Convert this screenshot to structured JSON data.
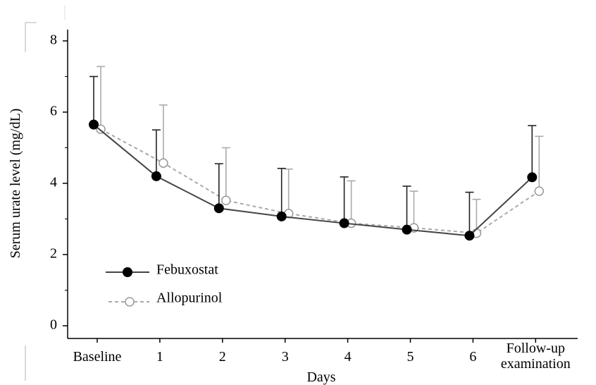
{
  "chart_data": {
    "type": "line",
    "xlabel": "Days",
    "ylabel": "Serum urate level (mg/dL)",
    "ylim": [
      0,
      8
    ],
    "yticks": [
      0,
      2,
      4,
      6,
      8
    ],
    "categories": [
      "Baseline",
      "1",
      "2",
      "3",
      "4",
      "5",
      "6",
      "Follow-up examination"
    ],
    "category_lines": [
      [
        "Baseline"
      ],
      [
        "1"
      ],
      [
        "2"
      ],
      [
        "3"
      ],
      [
        "4"
      ],
      [
        "5"
      ],
      [
        "6"
      ],
      [
        "Follow-up",
        "examination"
      ]
    ],
    "grid": false,
    "legend_position": "bottom-left",
    "series": [
      {
        "name": "Febuxostat",
        "marker": "filled-circle",
        "line_style": "solid",
        "color": "#000000",
        "line_color": "#444444",
        "values": [
          5.65,
          4.2,
          3.3,
          3.07,
          2.88,
          2.7,
          2.53,
          4.17
        ],
        "error_upper": [
          7.0,
          5.5,
          4.55,
          4.42,
          4.18,
          3.92,
          3.75,
          5.62
        ]
      },
      {
        "name": "Allopurinol",
        "marker": "open-circle",
        "line_style": "dashed",
        "color": "#999999",
        "line_color": "#aaaaaa",
        "values": [
          5.52,
          4.57,
          3.52,
          3.15,
          2.88,
          2.75,
          2.6,
          3.78
        ],
        "error_upper": [
          7.28,
          6.2,
          5.0,
          4.4,
          4.07,
          3.78,
          3.55,
          5.32
        ]
      }
    ]
  }
}
